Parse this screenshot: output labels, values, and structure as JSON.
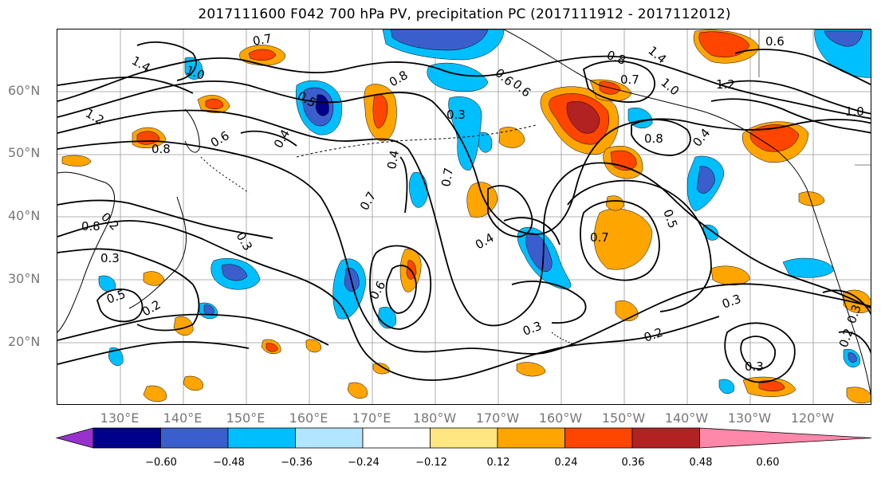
{
  "title": "2017111600 F042 700 hPa PV, precipitation PC (2017111912 - 2017112012)",
  "lat_labels": [
    "60°N",
    "50°N",
    "40°N",
    "30°N",
    "20°N"
  ],
  "lon_labels": [
    "130°E",
    "140°E",
    "150°E",
    "160°E",
    "170°E",
    "180°W",
    "170°W",
    "160°W",
    "150°W",
    "140°W",
    "130°W",
    "120°W"
  ],
  "colorbar": {
    "ticks": [
      "−0.60",
      "−0.48",
      "−0.36",
      "−0.24",
      "−0.12",
      "0.12",
      "0.24",
      "0.36",
      "0.48",
      "0.60"
    ],
    "colors": [
      "#9932cc",
      "#00008b",
      "#3a5fcd",
      "#00bfff",
      "#b2e5ff",
      "#ffffff",
      "#ffe680",
      "#ffa500",
      "#ff4500",
      "#b22222",
      "#ff88aa"
    ]
  },
  "contour_labels": [
    "0.7",
    "1.0",
    "1.4",
    "1.2",
    "0.8",
    "0.6",
    "0.5",
    "0.4",
    "0.3",
    "0.2",
    "0.7",
    "0.4",
    "0.3",
    "0.7",
    "0.4",
    "0.8",
    "0.6",
    "1.4",
    "1.0",
    "0.8",
    "1.2",
    "1.0",
    "0.6",
    "0.8",
    "0.7",
    "0.5",
    "0.7",
    "0.3",
    "0.2",
    "0.3",
    "0.3",
    "0.5",
    "0.2",
    "0.3",
    "0.6",
    "0.8",
    "0.4",
    "0.3",
    "0.6",
    "0.2"
  ]
}
